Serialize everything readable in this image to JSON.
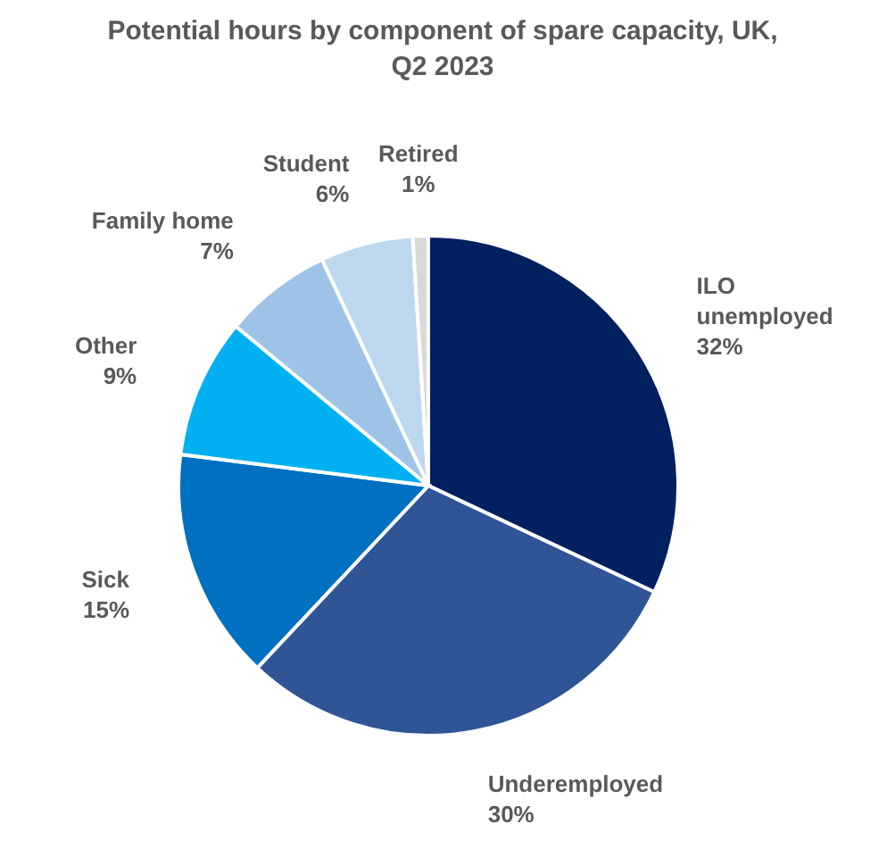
{
  "chart_data": {
    "type": "pie",
    "title": "Potential hours by component of spare capacity, UK, Q2 2023",
    "categories": [
      "ILO unemployed",
      "Underemployed",
      "Sick",
      "Other",
      "Family home",
      "Student",
      "Retired"
    ],
    "values": [
      32,
      30,
      15,
      9,
      7,
      6,
      1
    ],
    "value_labels": [
      "32%",
      "30%",
      "15%",
      "9%",
      "7%",
      "6%",
      "1%"
    ],
    "colors": [
      "#002060",
      "#2f5597",
      "#0070c0",
      "#00b0f0",
      "#9dc3e6",
      "#bdd7ee",
      "#d9d9d9"
    ],
    "legend": false
  }
}
